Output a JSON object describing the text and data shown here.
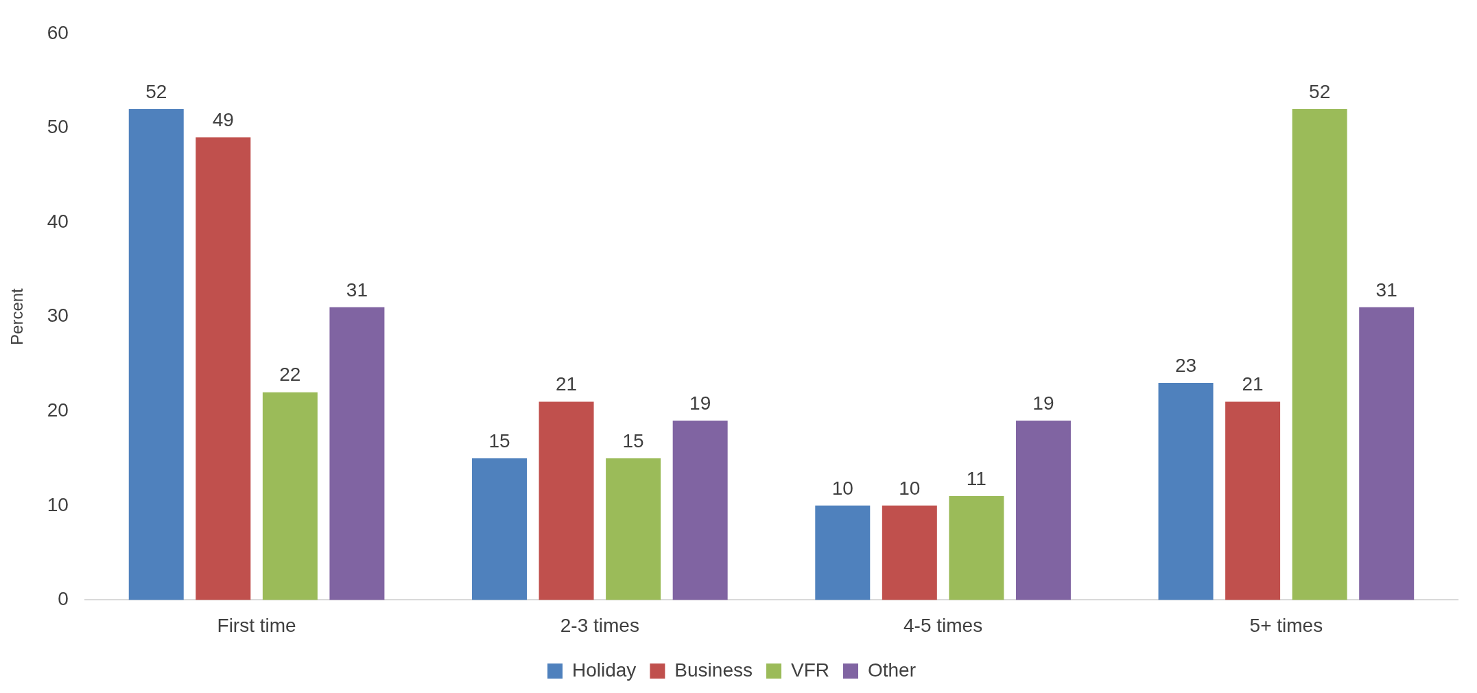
{
  "chart_data": {
    "type": "bar",
    "ylabel": "Percent",
    "categories": [
      "First time",
      "2-3 times",
      "4-5 times",
      "5+ times"
    ],
    "series": [
      {
        "name": "Holiday",
        "color": "#4f81bd",
        "values": [
          52,
          15,
          10,
          23
        ]
      },
      {
        "name": "Business",
        "color": "#c0504d",
        "values": [
          49,
          21,
          10,
          21
        ]
      },
      {
        "name": "VFR",
        "color": "#9bbb59",
        "values": [
          22,
          15,
          11,
          52
        ]
      },
      {
        "name": "Other",
        "color": "#8064a2",
        "values": [
          31,
          19,
          19,
          31
        ]
      }
    ],
    "ylim": [
      0,
      60
    ],
    "yticks": [
      0,
      10,
      20,
      30,
      40,
      50,
      60
    ],
    "grid": false,
    "legend": "bottom",
    "data_labels": true
  }
}
